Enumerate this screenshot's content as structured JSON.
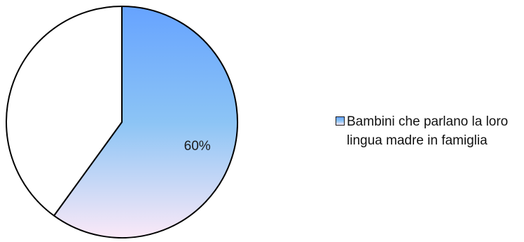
{
  "chart_data": {
    "type": "pie",
    "slices": [
      {
        "label": "Bambini che parlano la loro lingua madre in famiglia",
        "value": 60,
        "data_label": "60%",
        "fill": "gradient-blue-pink"
      },
      {
        "label": "",
        "value": 40,
        "data_label": "",
        "fill": "#ffffff"
      }
    ],
    "start": "12 o'clock",
    "direction": "clockwise",
    "legend": {
      "position": "right",
      "entries": [
        "Bambini che parlano la loro lingua madre in famiglia"
      ]
    },
    "colors": {
      "gradient_top": "#66a3ff",
      "gradient_mid": "#8cc4f5",
      "gradient_bottom": "#fbe9f7",
      "outline": "#000000"
    }
  }
}
